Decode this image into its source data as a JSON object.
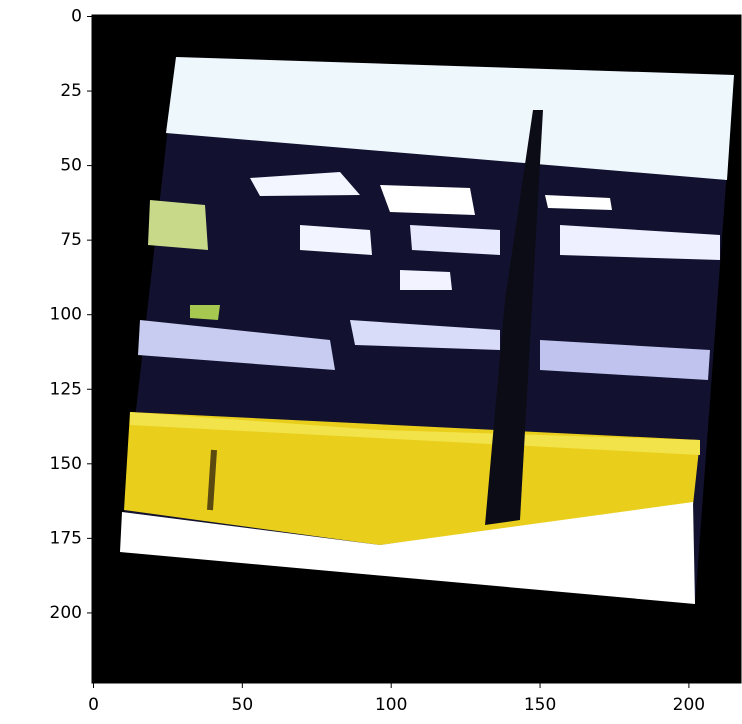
{
  "chart_data": {
    "type": "image",
    "xlim": [
      -0.5,
      217.5
    ],
    "ylim": [
      223.5,
      -0.5
    ],
    "xticks": [
      0,
      50,
      100,
      150,
      200
    ],
    "yticks": [
      0,
      25,
      50,
      75,
      100,
      125,
      150,
      175,
      200
    ]
  }
}
